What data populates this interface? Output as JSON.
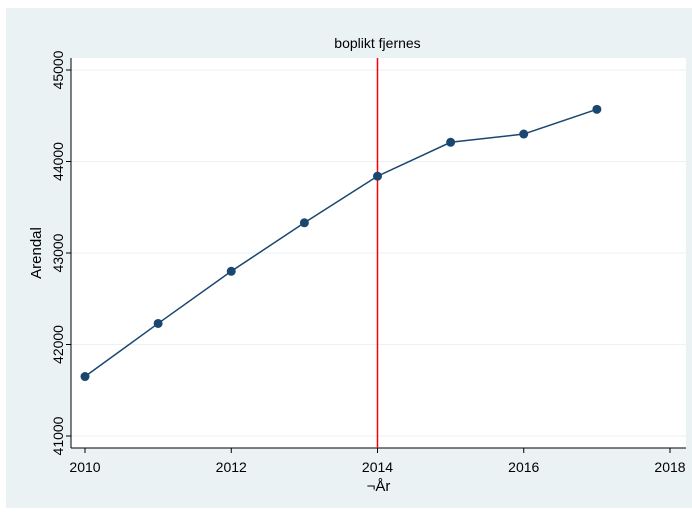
{
  "chart_data": {
    "type": "line",
    "title": "",
    "xlabel": "¬År",
    "ylabel": "Arendal",
    "xlim": [
      2010,
      2018
    ],
    "ylim": [
      41000,
      45000
    ],
    "x_ticks": [
      "2010",
      "2012",
      "2014",
      "2016",
      "2018"
    ],
    "y_ticks": [
      "41000",
      "42000",
      "43000",
      "44000",
      "45000"
    ],
    "grid": "horizontal",
    "legend": "none",
    "series": [
      {
        "x": [
          2010,
          2011,
          2012,
          2013,
          2014,
          2015,
          2016,
          2017
        ],
        "values": [
          41650,
          42230,
          42800,
          43330,
          43840,
          44210,
          44300,
          44570
        ],
        "color": "#1a476f"
      }
    ],
    "annotations": [
      {
        "type": "vline",
        "x": 2014,
        "label": "boplikt fjernes",
        "color": "#ff0000"
      }
    ],
    "colors": {
      "outer_background": "#eaf2f3",
      "plot_background": "#ffffff",
      "grid": "#eaf2f3",
      "line": "#1a476f",
      "vline": "#ff0000"
    }
  }
}
